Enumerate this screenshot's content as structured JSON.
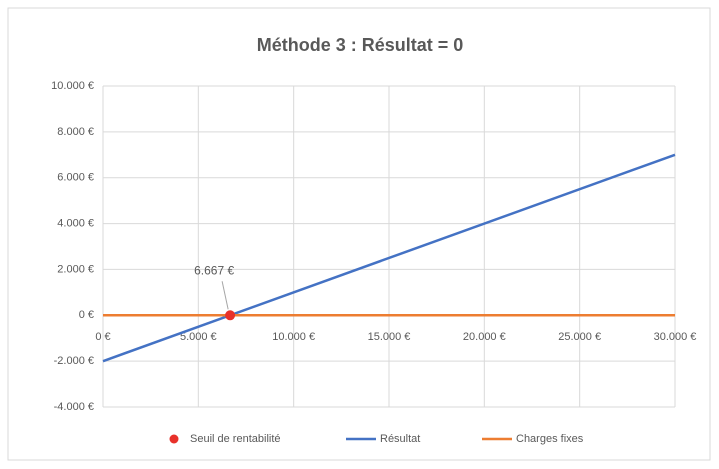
{
  "chart_data": {
    "type": "line",
    "title": "Méthode 3 : Résultat = 0",
    "xlim": [
      0,
      30000
    ],
    "xticks": [
      {
        "value": 0,
        "label": "0 €"
      },
      {
        "value": 5000,
        "label": "5.000 €"
      },
      {
        "value": 10000,
        "label": "10.000 €"
      },
      {
        "value": 15000,
        "label": "15.000 €"
      },
      {
        "value": 20000,
        "label": "20.000 €"
      },
      {
        "value": 25000,
        "label": "25.000 €"
      },
      {
        "value": 30000,
        "label": "30.000 €"
      }
    ],
    "ylim": [
      -4000,
      10000
    ],
    "yticks": [
      {
        "value": -4000,
        "label": "-4.000 €"
      },
      {
        "value": -2000,
        "label": "-2.000 €"
      },
      {
        "value": 0,
        "label": "0 €"
      },
      {
        "value": 2000,
        "label": "2.000 €"
      },
      {
        "value": 4000,
        "label": "4.000 €"
      },
      {
        "value": 6000,
        "label": "6.000 €"
      },
      {
        "value": 8000,
        "label": "8.000 €"
      },
      {
        "value": 10000,
        "label": "10.000 €"
      }
    ],
    "grid": true,
    "legend": "bottom",
    "series": [
      {
        "name": "Seuil de rentabilité",
        "type": "scatter",
        "color": "#e8312a",
        "x": [
          6667
        ],
        "values": [
          0
        ],
        "value_labels": [
          "6.667 €"
        ]
      },
      {
        "name": "Résultat",
        "type": "line",
        "color": "#4472c4",
        "x": [
          0,
          30000
        ],
        "values": [
          -2000,
          7000
        ]
      },
      {
        "name": "Charges fixes",
        "type": "line",
        "color": "#ed7d31",
        "x": [
          0,
          30000
        ],
        "values": [
          0,
          0
        ]
      }
    ]
  }
}
